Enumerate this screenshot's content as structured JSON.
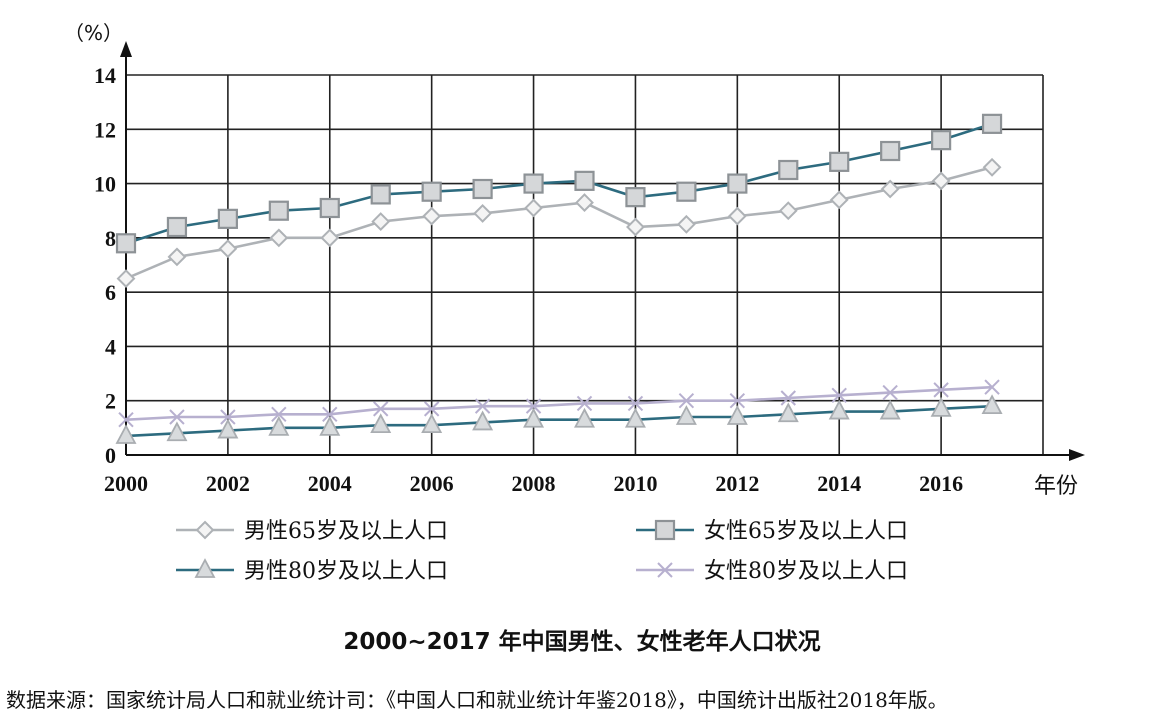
{
  "chart_data": {
    "type": "line",
    "title": "2000~2017 年中国男性、女性老年人口状况",
    "source": "数据来源：国家统计局人口和就业统计司：《中国人口和就业统计年鉴2018》，中国统计出版社2018年版。",
    "ylabel": "（%）",
    "xlabel": "年份",
    "ylim": [
      0,
      14
    ],
    "yticks": [
      0,
      2,
      4,
      6,
      8,
      10,
      12,
      14
    ],
    "xlim": [
      2000,
      2018
    ],
    "xticks": [
      2000,
      2002,
      2004,
      2006,
      2008,
      2010,
      2012,
      2014,
      2016
    ],
    "grid": true,
    "legend_position": "bottom",
    "x": [
      2000,
      2001,
      2002,
      2003,
      2004,
      2005,
      2006,
      2007,
      2008,
      2009,
      2010,
      2011,
      2012,
      2013,
      2014,
      2015,
      2016,
      2017
    ],
    "series": [
      {
        "name": "男性65岁及以上人口",
        "color": "#aeb2b6",
        "marker": "diamond",
        "values": [
          6.5,
          7.3,
          7.6,
          8.0,
          8.0,
          8.6,
          8.8,
          8.9,
          9.1,
          9.3,
          8.4,
          8.5,
          8.8,
          9.0,
          9.4,
          9.8,
          10.1,
          10.6
        ]
      },
      {
        "name": "女性65岁及以上人口",
        "color": "#2d6b7f",
        "marker": "square",
        "values": [
          7.8,
          8.4,
          8.7,
          9.0,
          9.1,
          9.6,
          9.7,
          9.8,
          10.0,
          10.1,
          9.5,
          9.7,
          10.0,
          10.5,
          10.8,
          11.2,
          11.6,
          12.2
        ]
      },
      {
        "name": "男性80岁及以上人口",
        "color": "#2d6b7f",
        "marker": "triangle",
        "values": [
          0.7,
          0.8,
          0.9,
          1.0,
          1.0,
          1.1,
          1.1,
          1.2,
          1.3,
          1.3,
          1.3,
          1.4,
          1.4,
          1.5,
          1.6,
          1.6,
          1.7,
          1.8
        ]
      },
      {
        "name": "女性80岁及以上人口",
        "color": "#b7b0cf",
        "marker": "x",
        "values": [
          1.3,
          1.4,
          1.4,
          1.5,
          1.5,
          1.7,
          1.7,
          1.8,
          1.8,
          1.9,
          1.9,
          2.0,
          2.0,
          2.1,
          2.2,
          2.3,
          2.4,
          2.5
        ]
      }
    ]
  }
}
